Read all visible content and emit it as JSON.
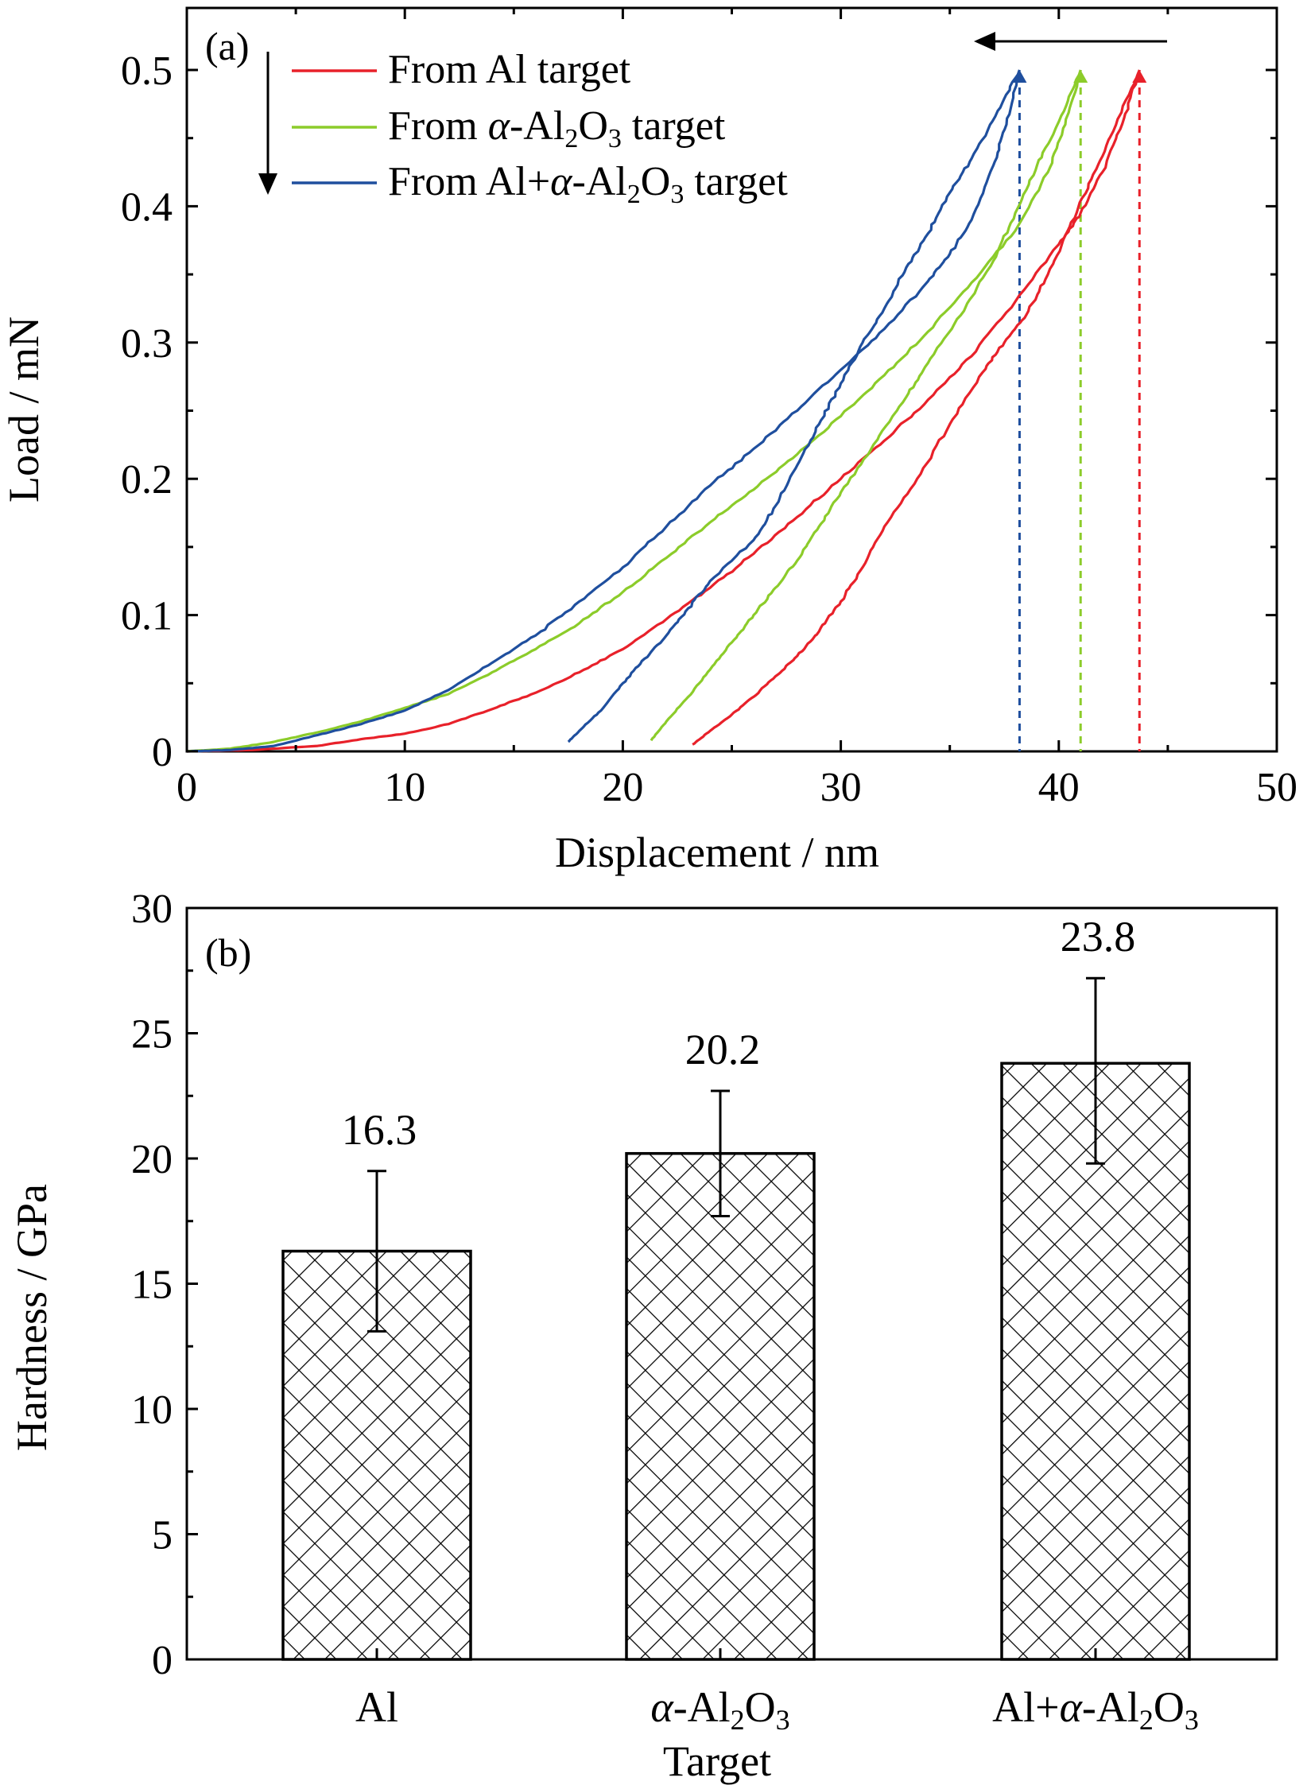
{
  "colors": {
    "red": "#e8212a",
    "green": "#8ccc2a",
    "blue": "#1f4f9e",
    "axis": "#000000"
  },
  "chart_data": [
    {
      "panel_label": "(a)",
      "type": "line",
      "xlabel": "Displacement / nm",
      "ylabel": "Load / mN",
      "xlim": [
        0,
        50
      ],
      "ylim": [
        0,
        0.5
      ],
      "xticks": [
        0,
        10,
        20,
        30,
        40,
        50
      ],
      "yticks": [
        0,
        0.1,
        0.2,
        0.3,
        0.4,
        0.5
      ],
      "xtick_labels": [
        "0",
        "10",
        "20",
        "30",
        "40",
        "50"
      ],
      "ytick_labels": [
        "0",
        "0.1",
        "0.2",
        "0.3",
        "0.4",
        "0.5"
      ],
      "legend_position": "top",
      "annotations": [
        "loading direction arrow (down)",
        "unloading direction arrow (left)"
      ],
      "series": [
        {
          "name": "From Al target",
          "legend_parts": [
            "From Al target"
          ],
          "color": "#e8212a",
          "peak": [
            43.7,
            0.5
          ],
          "loading": [
            [
              0,
              0
            ],
            [
              3,
              0.001
            ],
            [
              6,
              0.004
            ],
            [
              8,
              0.009
            ],
            [
              10,
              0.013
            ],
            [
              12,
              0.02
            ],
            [
              14,
              0.031
            ],
            [
              16,
              0.043
            ],
            [
              18,
              0.058
            ],
            [
              20,
              0.075
            ],
            [
              22,
              0.097
            ],
            [
              24,
              0.12
            ],
            [
              26,
              0.145
            ],
            [
              28,
              0.172
            ],
            [
              30,
              0.2
            ],
            [
              32,
              0.228
            ],
            [
              34,
              0.258
            ],
            [
              36,
              0.29
            ],
            [
              38,
              0.33
            ],
            [
              40,
              0.372
            ],
            [
              41,
              0.395
            ],
            [
              42,
              0.425
            ],
            [
              43,
              0.465
            ],
            [
              43.7,
              0.5
            ]
          ],
          "unloading": [
            [
              43.7,
              0.5
            ],
            [
              42.5,
              0.455
            ],
            [
              41.5,
              0.42
            ],
            [
              40.5,
              0.385
            ],
            [
              39.5,
              0.35
            ],
            [
              38.5,
              0.32
            ],
            [
              37.5,
              0.3
            ],
            [
              36.5,
              0.278
            ],
            [
              35,
              0.24
            ],
            [
              33.5,
              0.2
            ],
            [
              32,
              0.165
            ],
            [
              31,
              0.135
            ],
            [
              30,
              0.11
            ],
            [
              29,
              0.088
            ],
            [
              28,
              0.07
            ],
            [
              27,
              0.055
            ],
            [
              26,
              0.04
            ],
            [
              25,
              0.027
            ],
            [
              24,
              0.015
            ],
            [
              23.2,
              0.005
            ]
          ]
        },
        {
          "name": "From α-Al2O3 target",
          "legend_parts": [
            "From ",
            "α",
            "-Al",
            "2",
            "O",
            "3",
            " target"
          ],
          "color": "#8ccc2a",
          "peak": [
            41.0,
            0.5
          ],
          "loading": [
            [
              0,
              0
            ],
            [
              2,
              0.002
            ],
            [
              4,
              0.007
            ],
            [
              6,
              0.014
            ],
            [
              8,
              0.022
            ],
            [
              10,
              0.032
            ],
            [
              12,
              0.042
            ],
            [
              14,
              0.058
            ],
            [
              16,
              0.075
            ],
            [
              18,
              0.094
            ],
            [
              20,
              0.117
            ],
            [
              22,
              0.142
            ],
            [
              24,
              0.168
            ],
            [
              26,
              0.192
            ],
            [
              28,
              0.218
            ],
            [
              30,
              0.246
            ],
            [
              32,
              0.276
            ],
            [
              34,
              0.308
            ],
            [
              36,
              0.344
            ],
            [
              38,
              0.382
            ],
            [
              39.5,
              0.425
            ],
            [
              40.3,
              0.46
            ],
            [
              41,
              0.5
            ]
          ],
          "unloading": [
            [
              41,
              0.5
            ],
            [
              40,
              0.462
            ],
            [
              39,
              0.43
            ],
            [
              38,
              0.395
            ],
            [
              37,
              0.36
            ],
            [
              35.5,
              0.32
            ],
            [
              34,
              0.285
            ],
            [
              33,
              0.26
            ],
            [
              31.5,
              0.225
            ],
            [
              30,
              0.19
            ],
            [
              29,
              0.165
            ],
            [
              28,
              0.14
            ],
            [
              27,
              0.12
            ],
            [
              26,
              0.1
            ],
            [
              25,
              0.08
            ],
            [
              24,
              0.06
            ],
            [
              23,
              0.04
            ],
            [
              22,
              0.022
            ],
            [
              21.3,
              0.008
            ]
          ]
        },
        {
          "name": "From Al+α-Al2O3 target",
          "legend_parts": [
            "From Al+",
            "α",
            "-Al",
            "2",
            "O",
            "3",
            " target"
          ],
          "color": "#1f4f9e",
          "peak": [
            38.2,
            0.5
          ],
          "loading": [
            [
              0,
              0
            ],
            [
              2,
              0.001
            ],
            [
              4,
              0.004
            ],
            [
              6,
              0.012
            ],
            [
              8,
              0.02
            ],
            [
              10,
              0.03
            ],
            [
              12,
              0.045
            ],
            [
              14,
              0.065
            ],
            [
              16,
              0.085
            ],
            [
              18,
              0.11
            ],
            [
              20,
              0.135
            ],
            [
              22,
              0.165
            ],
            [
              24,
              0.195
            ],
            [
              26,
              0.222
            ],
            [
              28,
              0.25
            ],
            [
              30,
              0.28
            ],
            [
              32,
              0.31
            ],
            [
              34,
              0.345
            ],
            [
              35,
              0.365
            ],
            [
              36,
              0.39
            ],
            [
              37,
              0.43
            ],
            [
              37.6,
              0.46
            ],
            [
              38.2,
              0.5
            ]
          ],
          "unloading": [
            [
              38.2,
              0.5
            ],
            [
              37.2,
              0.47
            ],
            [
              36,
              0.435
            ],
            [
              35,
              0.41
            ],
            [
              34,
              0.38
            ],
            [
              33,
              0.355
            ],
            [
              32,
              0.325
            ],
            [
              31,
              0.3
            ],
            [
              30,
              0.27
            ],
            [
              29,
              0.24
            ],
            [
              28,
              0.21
            ],
            [
              27,
              0.18
            ],
            [
              26,
              0.155
            ],
            [
              24,
              0.125
            ],
            [
              23,
              0.105
            ],
            [
              22,
              0.085
            ],
            [
              21,
              0.068
            ],
            [
              20,
              0.05
            ],
            [
              19,
              0.03
            ],
            [
              18,
              0.015
            ],
            [
              17.5,
              0.007
            ]
          ]
        }
      ]
    },
    {
      "panel_label": "(b)",
      "type": "bar",
      "xlabel": "Target",
      "ylabel": "Hardness / GPa",
      "ylim": [
        0,
        30
      ],
      "yticks": [
        0,
        5,
        10,
        15,
        20,
        25,
        30
      ],
      "ytick_labels": [
        "0",
        "5",
        "10",
        "15",
        "20",
        "25",
        "30"
      ],
      "grid": false,
      "fill_pattern": "crosshatch",
      "categories": [
        {
          "label": "Al",
          "parts": [
            "Al"
          ]
        },
        {
          "label": "α-Al2O3",
          "parts": [
            "α",
            "-Al",
            "2",
            "O",
            "3"
          ]
        },
        {
          "label": "Al+α-Al2O3",
          "parts": [
            "Al+",
            "α",
            "-Al",
            "2",
            "O",
            "3"
          ]
        }
      ],
      "values": [
        16.3,
        20.2,
        23.8
      ],
      "value_labels": [
        "16.3",
        "20.2",
        "23.8"
      ],
      "errors_low": [
        13.1,
        17.7,
        19.8
      ],
      "errors_high": [
        19.5,
        22.7,
        27.2
      ]
    }
  ]
}
